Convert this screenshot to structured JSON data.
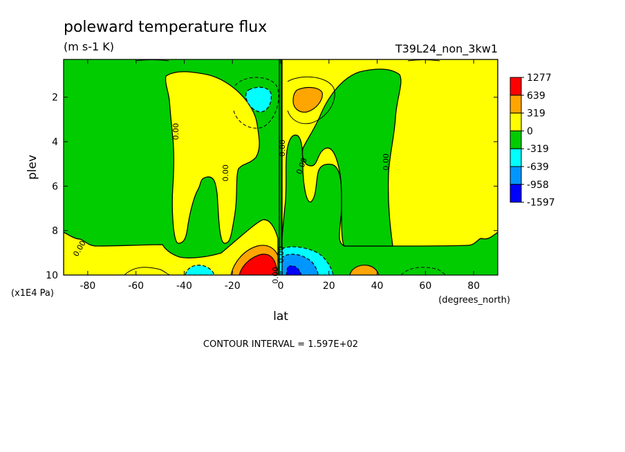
{
  "chart_data": {
    "type": "heatmap",
    "title": "poleward temperature flux",
    "subtitle": "(m s-1 K)",
    "run_label": "T39L24_non_3kw1",
    "xlabel": "lat",
    "xunits": "(degrees_north)",
    "ylabel": "plev",
    "yunits": "(x1E4 Pa)",
    "xlim": [
      -90,
      90
    ],
    "ylim": [
      10,
      0.3
    ],
    "x_ticks": [
      -80,
      -60,
      -40,
      -20,
      0,
      20,
      40,
      60,
      80
    ],
    "x_tick_labels": [
      "-80",
      "-60",
      "-40",
      "-20",
      "0",
      "20",
      "40",
      "60",
      "80"
    ],
    "y_ticks": [
      2,
      4,
      6,
      8,
      10
    ],
    "y_tick_labels": [
      "2",
      "4",
      "6",
      "8",
      "10"
    ],
    "contour_interval_text": "CONTOUR INTERVAL = 1.597E+02",
    "contour_labels": [
      "0.00",
      "0.00",
      "0.00",
      "0.00",
      "0.00",
      "0.00",
      "0.00",
      "0.00"
    ],
    "colorbar": {
      "levels": [
        "1277",
        "639",
        "319",
        "0",
        "-319",
        "-639",
        "-958",
        "-1597"
      ],
      "colors": [
        "#ff0000",
        "#ffa500",
        "#ffff00",
        "#00cc00",
        "#00ffff",
        "#0096ff",
        "#0000ff"
      ]
    },
    "regions": [
      {
        "sign": "positive",
        "color": "#ffff00",
        "lat_range": [
          -50,
          -5
        ],
        "plev_range": [
          1,
          8.5
        ]
      },
      {
        "sign": "negative",
        "color": "#00cc00",
        "lat_range": [
          -90,
          -40
        ],
        "plev_range": [
          0.3,
          8.5
        ]
      },
      {
        "sign": "positive",
        "color": "#ffff00",
        "lat_range": [
          0,
          90
        ],
        "plev_range": [
          0.3,
          8.5
        ]
      },
      {
        "sign": "negative",
        "color": "#00cc00",
        "lat_range": [
          5,
          55
        ],
        "plev_range": [
          0.8,
          8.5
        ]
      },
      {
        "sign": "negative",
        "color": "#00ffff",
        "lat_range": [
          -14,
          -5
        ],
        "plev_range": [
          1.2,
          2.4
        ]
      },
      {
        "sign": "positive",
        "color": "#ffa500",
        "lat_range": [
          5,
          15
        ],
        "plev_range": [
          1.2,
          2.5
        ]
      },
      {
        "sign": "positive",
        "color": "#ff0000",
        "lat_range": [
          -15,
          0
        ],
        "plev_range": [
          8.8,
          10
        ]
      },
      {
        "sign": "negative",
        "color": "#0096ff",
        "lat_range": [
          3,
          14
        ],
        "plev_range": [
          8.8,
          10
        ]
      },
      {
        "sign": "negative",
        "color": "#00ffff",
        "lat_range": [
          -40,
          -30
        ],
        "plev_range": [
          9.5,
          10
        ]
      },
      {
        "sign": "positive",
        "color": "#ffa500",
        "lat_range": [
          28,
          37
        ],
        "plev_range": [
          9.5,
          10
        ]
      }
    ],
    "grid": false,
    "legend_placement": "right"
  }
}
